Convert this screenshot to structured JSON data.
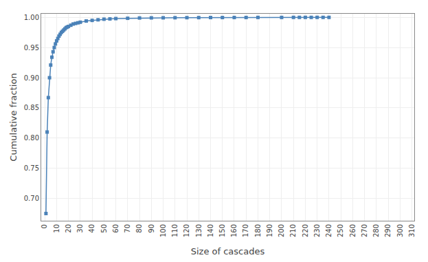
{
  "chart_data": {
    "type": "line",
    "xlabel": "Size of cascades",
    "ylabel": "Cumulative fraction",
    "x": [
      1,
      2,
      3,
      4,
      5,
      6,
      7,
      8,
      9,
      10,
      11,
      12,
      13,
      14,
      15,
      16,
      17,
      18,
      19,
      20,
      22,
      24,
      26,
      28,
      30,
      35,
      40,
      45,
      50,
      55,
      60,
      70,
      80,
      90,
      100,
      110,
      120,
      130,
      140,
      150,
      160,
      170,
      180,
      200,
      210,
      215,
      220,
      225,
      230,
      235,
      240
    ],
    "values": [
      0.675,
      0.81,
      0.867,
      0.9,
      0.921,
      0.934,
      0.943,
      0.95,
      0.956,
      0.961,
      0.965,
      0.969,
      0.972,
      0.975,
      0.977,
      0.979,
      0.981,
      0.983,
      0.984,
      0.985,
      0.987,
      0.989,
      0.99,
      0.991,
      0.992,
      0.994,
      0.995,
      0.996,
      0.997,
      0.9975,
      0.998,
      0.9985,
      0.999,
      0.9992,
      0.9993,
      0.9994,
      0.9995,
      0.9996,
      0.9997,
      0.9997,
      0.9998,
      0.9998,
      0.9999,
      0.9999,
      1.0,
      1.0,
      1.0,
      1.0,
      1.0,
      1.0,
      1.0
    ],
    "color": "#4b82b8",
    "marker": "square",
    "xlim": [
      -3,
      312
    ],
    "ylim": [
      0.663,
      1.006
    ],
    "xticks": [
      0,
      10,
      20,
      30,
      40,
      50,
      60,
      70,
      80,
      90,
      100,
      110,
      120,
      130,
      140,
      150,
      160,
      170,
      180,
      190,
      200,
      210,
      220,
      230,
      240,
      250,
      260,
      270,
      280,
      290,
      300,
      310
    ],
    "yticks": [
      {
        "value": 0.7,
        "label": "0.70"
      },
      0.75,
      {
        "value": 0.8,
        "label": "0.80"
      },
      0.85,
      {
        "value": 0.9,
        "label": "0.90"
      },
      0.95,
      {
        "value": 1.0,
        "label": "1.00"
      }
    ],
    "grid": true
  }
}
